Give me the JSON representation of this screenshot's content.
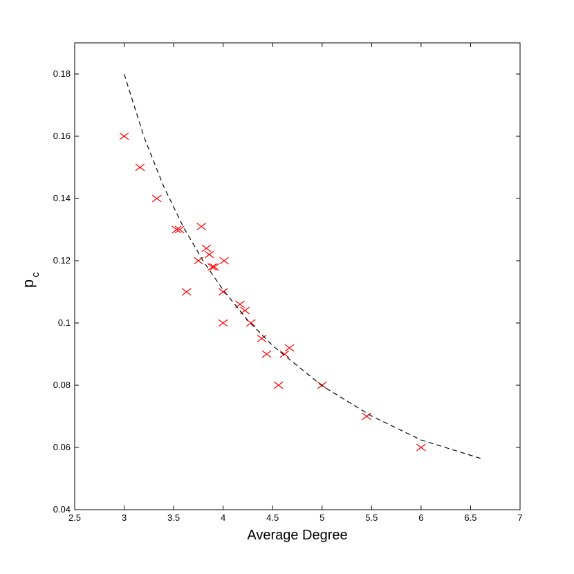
{
  "chart_data": {
    "type": "scatter",
    "x_label": "Average Degree",
    "y_label": "p",
    "y_label_subscript": "c",
    "xlim": [
      2.5,
      7
    ],
    "ylim": [
      0.04,
      0.19
    ],
    "xticks": [
      2.5,
      3,
      3.5,
      4,
      4.5,
      5,
      5.5,
      6,
      6.5,
      7
    ],
    "yticks": [
      0.04,
      0.06,
      0.08,
      0.1,
      0.12,
      0.14,
      0.16,
      0.18
    ],
    "series": [
      {
        "type": "scatter",
        "marker": "x",
        "color": "#ff0000",
        "x": [
          3.0,
          3.16,
          3.33,
          3.53,
          3.56,
          3.78,
          3.63,
          3.75,
          3.83,
          3.86,
          3.89,
          3.91,
          4.01,
          4.0,
          4.0,
          4.17,
          4.22,
          4.28,
          4.39,
          4.44,
          4.56,
          4.62,
          4.67,
          5.0,
          5.45,
          6.0
        ],
        "y": [
          0.16,
          0.15,
          0.14,
          0.13,
          0.13,
          0.131,
          0.11,
          0.12,
          0.124,
          0.122,
          0.118,
          0.118,
          0.12,
          0.11,
          0.1,
          0.106,
          0.104,
          0.1,
          0.095,
          0.09,
          0.08,
          0.09,
          0.092,
          0.08,
          0.07,
          0.06
        ]
      },
      {
        "type": "line",
        "dashed": true,
        "color": "#000000",
        "x": [
          3,
          3.2,
          3.4,
          3.6,
          3.8,
          4,
          4.25,
          4.5,
          5,
          5.5,
          6,
          6.6
        ],
        "y": [
          0.18,
          0.1598,
          0.1438,
          0.1307,
          0.1198,
          0.1106,
          0.1008,
          0.0927,
          0.0798,
          0.0701,
          0.0624,
          0.0565
        ]
      }
    ]
  }
}
